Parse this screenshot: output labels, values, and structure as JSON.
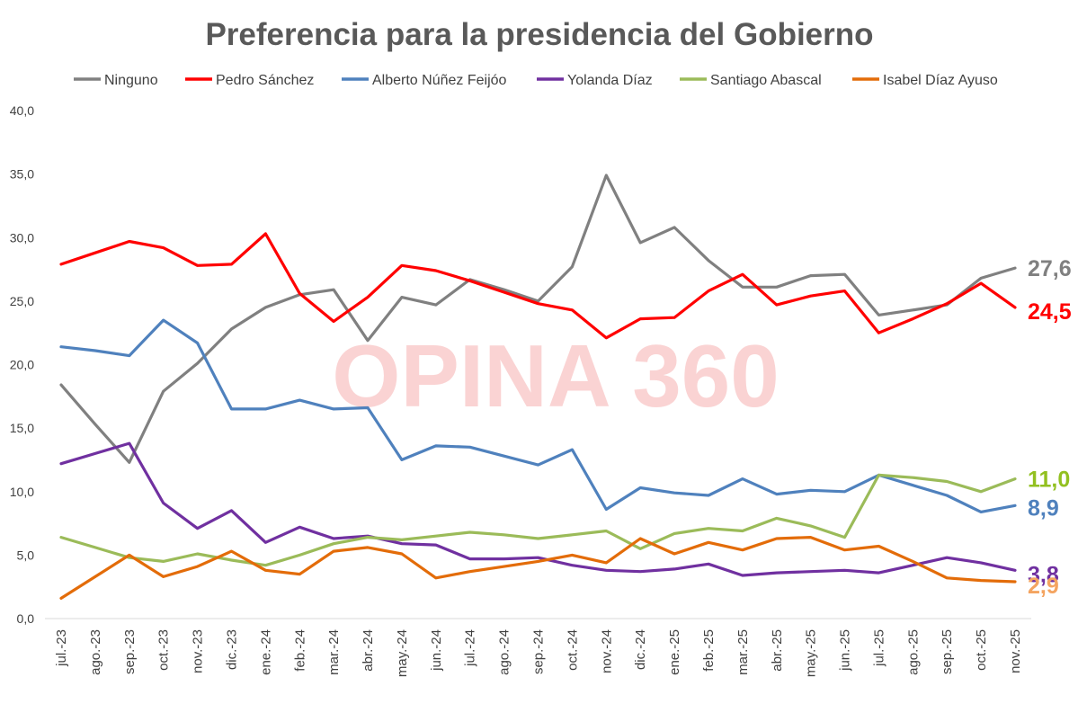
{
  "chart_data": {
    "type": "line",
    "title": "Preferencia para la presidencia del Gobierno",
    "watermark": "OPINA 360",
    "ylim": [
      0,
      40
    ],
    "yticks": [
      "0,0",
      "5,0",
      "10,0",
      "15,0",
      "20,0",
      "25,0",
      "30,0",
      "35,0",
      "40,0"
    ],
    "legend_position": "top",
    "grid": false,
    "categories": [
      "jul.-23",
      "ago.-23",
      "sep.-23",
      "oct.-23",
      "nov.-23",
      "dic.-23",
      "ene.-24",
      "feb.-24",
      "mar.-24",
      "abr.-24",
      "may.-24",
      "jun.-24",
      "jul.-24",
      "ago.-24",
      "sep.-24",
      "oct.-24",
      "nov.-24",
      "dic.-24",
      "ene.-25",
      "feb.-25",
      "mar.-25",
      "abr.-25",
      "may.-25",
      "jun.-25",
      "jul.-25",
      "ago.-25",
      "sep.-25",
      "oct.-25",
      "nov.-25"
    ],
    "series": [
      {
        "name": "Ninguno",
        "color": "#808080",
        "end_label": "27,6",
        "values": [
          18.4,
          15.3,
          12.3,
          17.9,
          20.1,
          22.8,
          24.5,
          25.5,
          25.9,
          21.9,
          25.3,
          24.7,
          26.7,
          25.9,
          25.0,
          27.7,
          34.9,
          29.6,
          30.8,
          28.2,
          26.1,
          26.1,
          27.0,
          27.1,
          23.9,
          24.3,
          24.7,
          26.8,
          27.6
        ]
      },
      {
        "name": "Pedro Sánchez",
        "color": "#ff0000",
        "end_label": "24,5",
        "values": [
          27.9,
          28.8,
          29.7,
          29.2,
          27.8,
          27.9,
          30.3,
          25.6,
          23.4,
          25.3,
          27.8,
          27.4,
          26.6,
          25.7,
          24.8,
          24.3,
          22.1,
          23.6,
          23.7,
          25.8,
          27.1,
          24.7,
          25.4,
          25.8,
          22.5,
          23.6,
          24.8,
          26.4,
          24.5
        ]
      },
      {
        "name": "Alberto Núñez Feijóo",
        "color": "#4f81bd",
        "end_label": "8,9",
        "values": [
          21.4,
          21.1,
          20.7,
          23.5,
          21.7,
          16.5,
          16.5,
          17.2,
          16.5,
          16.6,
          12.5,
          13.6,
          13.5,
          12.8,
          12.1,
          13.3,
          8.6,
          10.3,
          9.9,
          9.7,
          11.0,
          9.8,
          10.1,
          10.0,
          11.3,
          10.5,
          9.7,
          8.4,
          8.9
        ]
      },
      {
        "name": "Yolanda Díaz",
        "color": "#7030a0",
        "end_label": "3,8",
        "values": [
          12.2,
          13.0,
          13.8,
          9.1,
          7.1,
          8.5,
          6.0,
          7.2,
          6.3,
          6.5,
          5.9,
          5.8,
          4.7,
          4.7,
          4.8,
          4.2,
          3.8,
          3.7,
          3.9,
          4.3,
          3.4,
          3.6,
          3.7,
          3.8,
          3.6,
          4.2,
          4.8,
          4.4,
          3.8
        ]
      },
      {
        "name": "Santiago Abascal",
        "color": "#9bbb59",
        "end_label": "11,0",
        "values": [
          6.4,
          5.6,
          4.8,
          4.5,
          5.1,
          4.6,
          4.2,
          5.0,
          5.9,
          6.4,
          6.2,
          6.5,
          6.8,
          6.6,
          6.3,
          6.6,
          6.9,
          5.5,
          6.7,
          7.1,
          6.9,
          7.9,
          7.3,
          6.4,
          11.3,
          11.1,
          10.8,
          10.0,
          11.0
        ]
      },
      {
        "name": "Isabel Díaz Ayuso",
        "color": "#e36c09",
        "end_label": "2,9",
        "values": [
          1.6,
          3.3,
          5.0,
          3.3,
          4.1,
          5.3,
          3.8,
          3.5,
          5.3,
          5.6,
          5.1,
          3.2,
          3.7,
          4.1,
          4.5,
          5.0,
          4.4,
          6.3,
          5.1,
          6.0,
          5.4,
          6.3,
          6.4,
          5.4,
          5.7,
          4.5,
          3.2,
          3.0,
          2.9
        ]
      }
    ]
  }
}
